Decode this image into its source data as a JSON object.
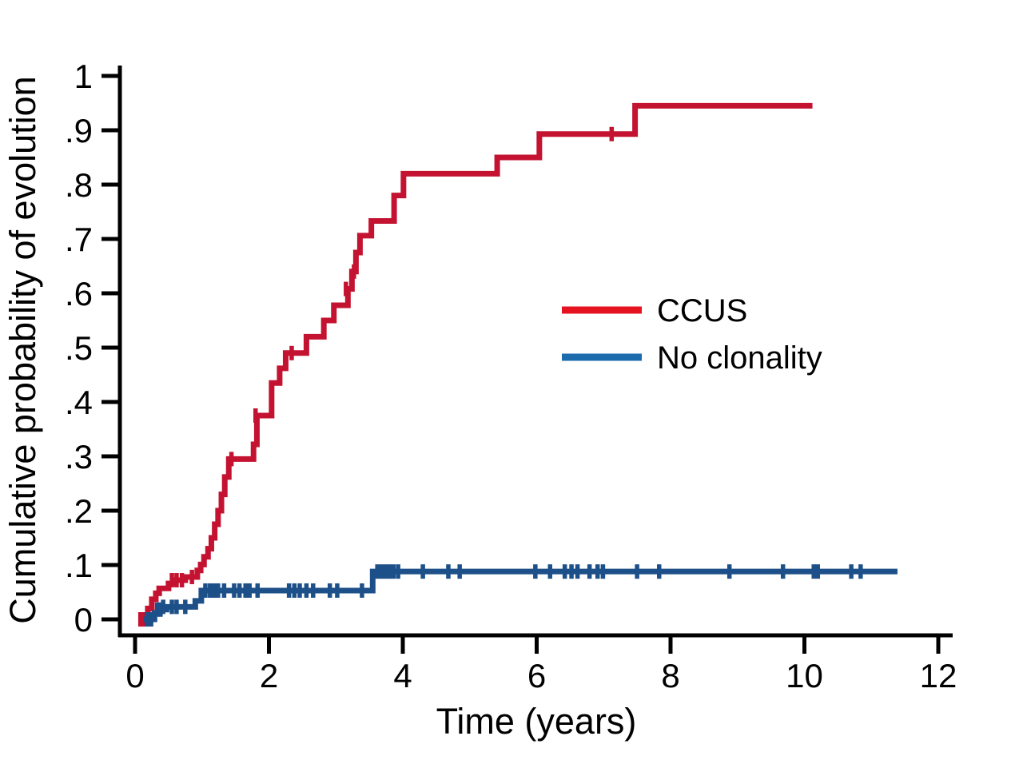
{
  "page": {
    "background": "#ffffff"
  },
  "chart_data": {
    "type": "line",
    "subtype": "kaplan-meier-cumulative-incidence-step",
    "title": "",
    "xlabel": "Time (years)",
    "ylabel": "Cumulative probability of evolution",
    "xlim": [
      0,
      12
    ],
    "ylim": [
      0,
      1
    ],
    "grid": false,
    "legend_position": "middle-right",
    "x_ticks": {
      "values": [
        0,
        2,
        4,
        6,
        8,
        10,
        12
      ],
      "labels": [
        "0",
        "2",
        "4",
        "6",
        "8",
        "10",
        "12"
      ]
    },
    "y_ticks": {
      "values": [
        0,
        0.1,
        0.2,
        0.3,
        0.4,
        0.5,
        0.6,
        0.7,
        0.8,
        0.9,
        1
      ],
      "labels": [
        "0",
        ".1",
        ".2",
        ".3",
        ".4",
        ".5",
        ".6",
        ".7",
        ".8",
        ".9",
        "1"
      ]
    },
    "series": [
      {
        "name": "CCUS",
        "curve_color": "#c41231",
        "end_x": 10.12,
        "steps": [
          [
            0.05,
            0
          ],
          [
            0.19,
            0.02
          ],
          [
            0.25,
            0.037
          ],
          [
            0.31,
            0.048
          ],
          [
            0.36,
            0.057
          ],
          [
            0.5,
            0.066
          ],
          [
            0.57,
            0.072
          ],
          [
            0.75,
            0.078
          ],
          [
            0.93,
            0.09
          ],
          [
            0.98,
            0.101
          ],
          [
            1.03,
            0.115
          ],
          [
            1.09,
            0.13
          ],
          [
            1.14,
            0.15
          ],
          [
            1.19,
            0.175
          ],
          [
            1.24,
            0.2
          ],
          [
            1.29,
            0.23
          ],
          [
            1.34,
            0.262
          ],
          [
            1.4,
            0.295
          ],
          [
            1.77,
            0.322
          ],
          [
            1.82,
            0.375
          ],
          [
            2.04,
            0.435
          ],
          [
            2.16,
            0.462
          ],
          [
            2.25,
            0.49
          ],
          [
            2.56,
            0.52
          ],
          [
            2.82,
            0.55
          ],
          [
            2.97,
            0.578
          ],
          [
            3.18,
            0.608
          ],
          [
            3.24,
            0.64
          ],
          [
            3.3,
            0.675
          ],
          [
            3.36,
            0.706
          ],
          [
            3.53,
            0.733
          ],
          [
            3.87,
            0.78
          ],
          [
            4.01,
            0.82
          ],
          [
            5.41,
            0.85
          ],
          [
            6.04,
            0.893
          ],
          [
            7.47,
            0.945
          ]
        ],
        "censor_marks": [
          [
            0.08,
            0
          ],
          [
            0.13,
            0
          ],
          [
            0.55,
            0.072
          ],
          [
            0.62,
            0.072
          ],
          [
            0.7,
            0.072
          ],
          [
            0.85,
            0.078
          ],
          [
            1.44,
            0.295
          ],
          [
            1.8,
            0.375
          ],
          [
            2.34,
            0.49
          ],
          [
            3.15,
            0.608
          ],
          [
            3.27,
            0.64
          ],
          [
            7.12,
            0.893
          ]
        ]
      },
      {
        "name": "No clonality",
        "curve_color": "#1d5089",
        "end_x": 11.39,
        "steps": [
          [
            0.13,
            0
          ],
          [
            0.29,
            0.012
          ],
          [
            0.34,
            0.018
          ],
          [
            0.47,
            0.023
          ],
          [
            0.9,
            0.034
          ],
          [
            0.99,
            0.053
          ],
          [
            3.55,
            0.088
          ]
        ],
        "censor_marks": [
          [
            0.18,
            0
          ],
          [
            0.24,
            0
          ],
          [
            0.33,
            0.018
          ],
          [
            0.38,
            0.018
          ],
          [
            0.42,
            0.023
          ],
          [
            0.55,
            0.023
          ],
          [
            0.62,
            0.023
          ],
          [
            0.75,
            0.023
          ],
          [
            1.05,
            0.053
          ],
          [
            1.12,
            0.053
          ],
          [
            1.18,
            0.053
          ],
          [
            1.24,
            0.053
          ],
          [
            1.33,
            0.053
          ],
          [
            1.48,
            0.053
          ],
          [
            1.56,
            0.053
          ],
          [
            1.65,
            0.053
          ],
          [
            1.71,
            0.053
          ],
          [
            1.83,
            0.053
          ],
          [
            2.3,
            0.053
          ],
          [
            2.38,
            0.053
          ],
          [
            2.46,
            0.053
          ],
          [
            2.56,
            0.053
          ],
          [
            2.66,
            0.053
          ],
          [
            2.91,
            0.053
          ],
          [
            3.02,
            0.053
          ],
          [
            3.39,
            0.053
          ],
          [
            3.62,
            0.088
          ],
          [
            3.68,
            0.088
          ],
          [
            3.74,
            0.088
          ],
          [
            3.8,
            0.088
          ],
          [
            3.86,
            0.088
          ],
          [
            3.93,
            0.088
          ],
          [
            4.3,
            0.088
          ],
          [
            4.68,
            0.088
          ],
          [
            4.85,
            0.088
          ],
          [
            5.98,
            0.088
          ],
          [
            6.2,
            0.088
          ],
          [
            6.42,
            0.088
          ],
          [
            6.52,
            0.088
          ],
          [
            6.61,
            0.088
          ],
          [
            6.79,
            0.088
          ],
          [
            6.91,
            0.088
          ],
          [
            6.99,
            0.088
          ],
          [
            7.5,
            0.088
          ],
          [
            7.83,
            0.088
          ],
          [
            8.88,
            0.088
          ],
          [
            9.68,
            0.088
          ],
          [
            10.14,
            0.088
          ],
          [
            10.2,
            0.088
          ],
          [
            10.7,
            0.088
          ],
          [
            10.84,
            0.088
          ]
        ]
      }
    ]
  },
  "legend": {
    "items": [
      {
        "label": "CCUS",
        "swatch_color": "#e5131f"
      },
      {
        "label": "No clonality",
        "swatch_color": "#1b6bad"
      }
    ]
  }
}
